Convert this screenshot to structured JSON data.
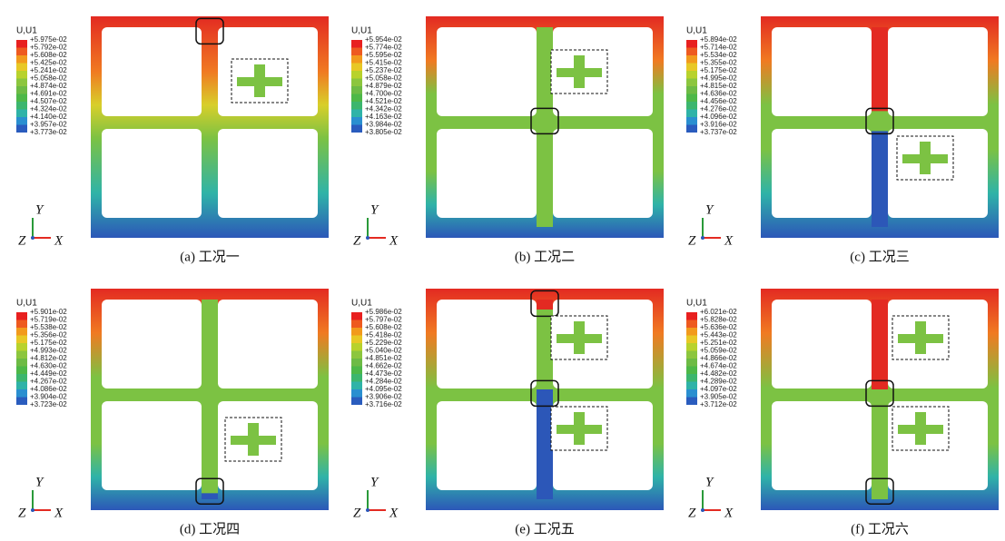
{
  "panels": [
    {
      "legend_title": "U,U1",
      "legend_values": [
        "+5.975e-02",
        "+5.792e-02",
        "+5.608e-02",
        "+5.425e-02",
        "+5.241e-02",
        "+5.058e-02",
        "+4.874e-02",
        "+4.691e-02",
        "+4.507e-02",
        "+4.324e-02",
        "+4.140e-02",
        "+3.957e-02",
        "+3.773e-02"
      ],
      "axis_labels": {
        "y": "Y",
        "z": "Z",
        "x": "X"
      },
      "caption": "(a) 工况一"
    },
    {
      "legend_title": "U,U1",
      "legend_values": [
        "+5.954e-02",
        "+5.774e-02",
        "+5.595e-02",
        "+5.415e-02",
        "+5.237e-02",
        "+5.058e-02",
        "+4.879e-02",
        "+4.700e-02",
        "+4.521e-02",
        "+4.342e-02",
        "+4.163e-02",
        "+3.984e-02",
        "+3.805e-02"
      ],
      "axis_labels": {
        "y": "Y",
        "z": "Z",
        "x": "X"
      },
      "caption": "(b) 工况二"
    },
    {
      "legend_title": "U,U1",
      "legend_values": [
        "+5.894e-02",
        "+5.714e-02",
        "+5.534e-02",
        "+5.355e-02",
        "+5.175e-02",
        "+4.995e-02",
        "+4.815e-02",
        "+4.636e-02",
        "+4.456e-02",
        "+4.276e-02",
        "+4.096e-02",
        "+3.916e-02",
        "+3.737e-02"
      ],
      "axis_labels": {
        "y": "Y",
        "z": "Z",
        "x": "X"
      },
      "caption": "(c) 工况三"
    },
    {
      "legend_title": "U,U1",
      "legend_values": [
        "+5.901e-02",
        "+5.719e-02",
        "+5.538e-02",
        "+5.356e-02",
        "+5.175e-02",
        "+4.993e-02",
        "+4.812e-02",
        "+4.630e-02",
        "+4.449e-02",
        "+4.267e-02",
        "+4.086e-02",
        "+3.904e-02",
        "+3.723e-02"
      ],
      "axis_labels": {
        "y": "Y",
        "z": "Z",
        "x": "X"
      },
      "caption": "(d) 工况四"
    },
    {
      "legend_title": "U,U1",
      "legend_values": [
        "+5.986e-02",
        "+5.797e-02",
        "+5.608e-02",
        "+5.418e-02",
        "+5.229e-02",
        "+5.040e-02",
        "+4.851e-02",
        "+4.662e-02",
        "+4.473e-02",
        "+4.284e-02",
        "+4.095e-02",
        "+3.906e-02",
        "+3.716e-02"
      ],
      "axis_labels": {
        "y": "Y",
        "z": "Z",
        "x": "X"
      },
      "caption": "(e) 工况五"
    },
    {
      "legend_title": "U,U1",
      "legend_values": [
        "+6.021e-02",
        "+5.828e-02",
        "+5.636e-02",
        "+5.443e-02",
        "+5.251e-02",
        "+5.059e-02",
        "+4.866e-02",
        "+4.674e-02",
        "+4.482e-02",
        "+4.289e-02",
        "+4.097e-02",
        "+3.905e-02",
        "+3.712e-02"
      ],
      "axis_labels": {
        "y": "Y",
        "z": "Z",
        "x": "X"
      },
      "caption": "(f) 工况六"
    }
  ]
}
